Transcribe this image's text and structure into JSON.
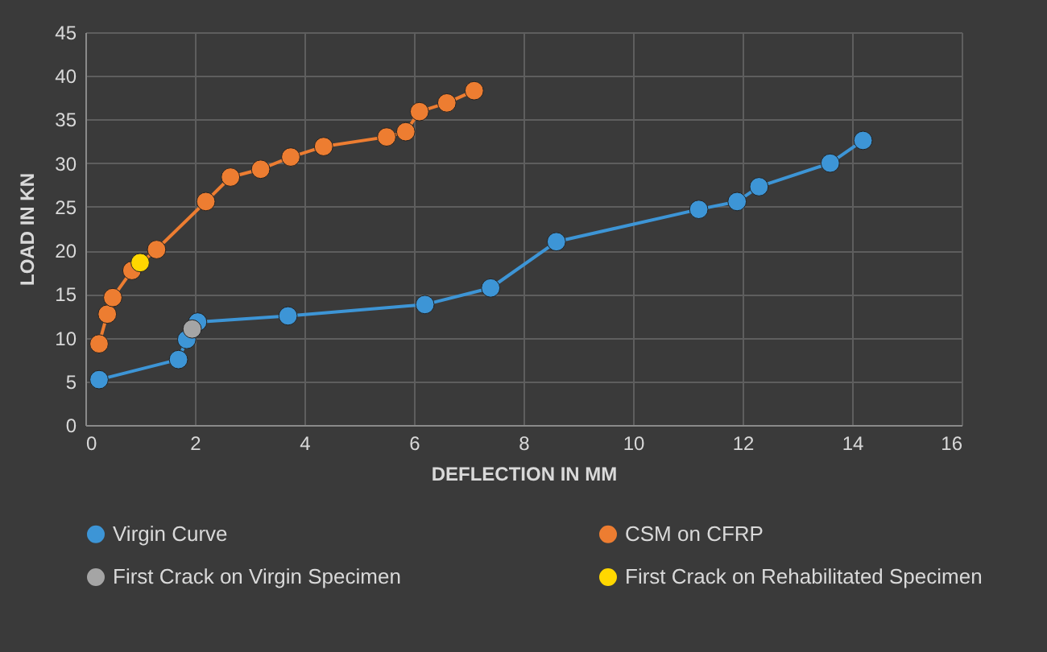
{
  "chart_data": {
    "type": "line",
    "xlabel": "DEFLECTION IN MM",
    "ylabel": "LOAD IN KN",
    "xlim": [
      0,
      16
    ],
    "xticks": [
      0,
      2,
      4,
      6,
      8,
      10,
      12,
      14,
      16
    ],
    "ylim": [
      0,
      45
    ],
    "yticks": [
      0,
      5,
      10,
      15,
      20,
      25,
      30,
      35,
      40,
      45
    ],
    "grid": true,
    "legend": "bottom",
    "marker": "circle",
    "line_style": "solid",
    "series": [
      {
        "name": "Virgin Curve",
        "color": "#3d95d6",
        "x": [
          0.25,
          1.7,
          1.85,
          2.05,
          3.7,
          6.2,
          7.4,
          8.6,
          11.2,
          11.9,
          12.3,
          13.6,
          14.2
        ],
        "values": [
          5.2,
          7.5,
          9.8,
          11.8,
          12.5,
          13.8,
          15.7,
          21,
          24.7,
          25.6,
          27.3,
          30,
          32.6
        ]
      },
      {
        "name": "CSM on CFRP",
        "color": "#ed7d31",
        "x": [
          0.25,
          0.4,
          0.5,
          0.85,
          1.3,
          2.2,
          2.65,
          3.2,
          3.75,
          4.35,
          5.5,
          5.85,
          6.1,
          6.6,
          7.1
        ],
        "values": [
          9.3,
          12.7,
          14.6,
          17.7,
          20.1,
          25.6,
          28.4,
          29.3,
          30.7,
          31.9,
          33,
          33.6,
          35.9,
          36.9,
          38.3
        ]
      },
      {
        "name": "First Crack on Virgin Specimen",
        "color": "#a5a5a5",
        "x": [
          1.95
        ],
        "values": [
          11
        ]
      },
      {
        "name": "First Crack on Rehabilitated Specimen",
        "color": "#ffd700",
        "x": [
          1.0
        ],
        "values": [
          18.6
        ]
      }
    ]
  }
}
